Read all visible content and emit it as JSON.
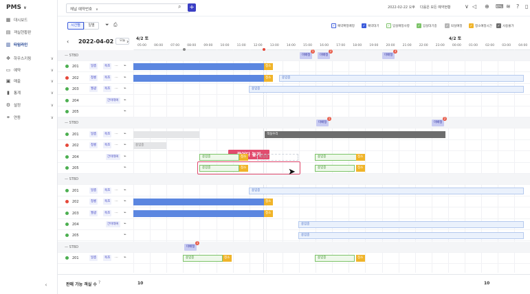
{
  "app": {
    "logo": "PMS"
  },
  "sidebar": {
    "items": [
      {
        "label": "대시보드",
        "icon": "dashboard-icon",
        "glyph": "▦",
        "chev": false,
        "active": false
      },
      {
        "label": "객실현황판",
        "icon": "room-board-icon",
        "glyph": "▤",
        "chev": false,
        "active": false
      },
      {
        "label": "타임라인",
        "icon": "timeline-icon",
        "glyph": "▥",
        "chev": false,
        "active": true
      },
      {
        "label": "하우스키핑",
        "icon": "housekeeping-icon",
        "glyph": "✥",
        "chev": true,
        "active": false
      },
      {
        "label": "예약",
        "icon": "reservation-icon",
        "glyph": "▭",
        "chev": true,
        "active": false
      },
      {
        "label": "매출",
        "icon": "sales-icon",
        "glyph": "▣",
        "chev": true,
        "active": false
      },
      {
        "label": "통계",
        "icon": "stats-icon",
        "glyph": "▮",
        "chev": true,
        "active": false
      },
      {
        "label": "설정",
        "icon": "settings-icon",
        "glyph": "⚙",
        "chev": true,
        "active": false
      },
      {
        "label": "연동",
        "icon": "integration-icon",
        "glyph": "⚭",
        "chev": true,
        "active": false
      }
    ]
  },
  "topbar": {
    "hotel_select": "채널 예약번호",
    "date_time": "2022-02-22 오후",
    "user": "다음은 모든 예약현황"
  },
  "toolbar": {
    "tab_timeline": "시간별",
    "tab_calendar": "일별",
    "legends": [
      {
        "label": "예약확정배정",
        "border": "#3b5bdb",
        "fill": "#ffffff",
        "check": "✓",
        "check_color": "#3b5bdb"
      },
      {
        "label": "예약대기",
        "border": "#3b5bdb",
        "fill": "#3b5bdb",
        "check": "✓",
        "check_color": "#ffffff"
      },
      {
        "label": "입실예정사항",
        "border": "#7cc368",
        "fill": "#ffffff",
        "check": "✓",
        "check_color": "#7cc368"
      },
      {
        "label": "입실대기중",
        "border": "#7cc368",
        "fill": "#7cc368",
        "check": "✓",
        "check_color": "#ffffff"
      },
      {
        "label": "퇴실예정",
        "border": "#b5b5b5",
        "fill": "#b5b5b5",
        "check": "✓",
        "check_color": "#ffffff"
      },
      {
        "label": "청소예정시간",
        "border": "#f0b429",
        "fill": "#f0b429",
        "check": "✓",
        "check_color": "#ffffff"
      },
      {
        "label": "사용불가",
        "border": "#6d6d6d",
        "fill": "#6d6d6d",
        "check": "✓",
        "check_color": "#ffffff"
      }
    ]
  },
  "date_nav": {
    "label": "2022-04-02",
    "today": "오늘",
    "prev": "‹",
    "next": "›"
  },
  "timeline": {
    "day1": "4/2 토",
    "day2": "4/2 토",
    "hours": [
      "05:00",
      "06:00",
      "07:00",
      "08:00",
      "09:00",
      "10:00",
      "11:00",
      "12:00",
      "13:00",
      "14:00",
      "15:00",
      "16:00",
      "17:00",
      "18:00",
      "19:00",
      "20:00",
      "21:00",
      "22:00",
      "23:00",
      "00:00",
      "01:00",
      "02:00",
      "03:00",
      "04:00",
      "05:00"
    ]
  },
  "groups": [
    {
      "label": "STBD",
      "rooms": [
        {
          "no": "201",
          "status": "#4caf50",
          "tags": [
            "일층",
            "욕조",
            "..."
          ],
          "bars": [
            {
              "kind": "blue",
              "text": ""
            },
            {
              "kind": "orange",
              "text": "청소"
            }
          ]
        },
        {
          "no": "202",
          "status": "#e5483a",
          "tags": [
            "청룡",
            "욕조",
            "..."
          ],
          "bars": [
            {
              "kind": "blue",
              "text": ""
            },
            {
              "kind": "orange",
              "text": "청소"
            },
            {
              "kind": "light",
              "text": "용입중"
            }
          ]
        },
        {
          "no": "203",
          "status": "#4caf50",
          "tags": [
            "월광",
            "욕조",
            "..."
          ],
          "bars": [
            {
              "kind": "light",
              "text": "용입중"
            }
          ]
        },
        {
          "no": "204",
          "status": "#4caf50",
          "tags": [
            "간이테이",
            "..."
          ],
          "bars": []
        },
        {
          "no": "205",
          "status": "#4caf50",
          "tags": [],
          "bars": []
        }
      ],
      "chips": [
        {
          "text": "미배정",
          "badge": "1"
        },
        {
          "text": "미배정",
          "badge": "2"
        },
        {
          "text": "미배정",
          "badge": "3"
        }
      ]
    },
    {
      "label": "STBD",
      "rooms": [
        {
          "no": "201",
          "status": "#4caf50",
          "tags": [
            "일층",
            "욕조",
            "..."
          ],
          "bars": [
            {
              "kind": "gray",
              "text": ""
            },
            {
              "kind": "dark",
              "text": "객실수리"
            }
          ]
        },
        {
          "no": "202",
          "status": "#e5483a",
          "tags": [
            "청룡",
            "욕조",
            "..."
          ],
          "bars": [
            {
              "kind": "gray",
              "text": "용입중"
            }
          ]
        },
        {
          "no": "204",
          "status": "#4caf50",
          "tags": [
            "간이테이",
            "..."
          ],
          "bars": [
            {
              "kind": "green",
              "text": "용입중"
            },
            {
              "kind": "orange",
              "text": "청소"
            },
            {
              "kind": "ghost",
              "text": "용입중"
            },
            {
              "kind": "green",
              "text": "용입중"
            },
            {
              "kind": "orange",
              "text": "청소"
            }
          ]
        },
        {
          "no": "205",
          "status": "#4caf50",
          "tags": [],
          "bars": [
            {
              "kind": "green",
              "text": "용입중"
            },
            {
              "kind": "orange",
              "text": "청소"
            },
            {
              "kind": "green",
              "text": "용입중"
            },
            {
              "kind": "orange",
              "text": "청소"
            }
          ]
        }
      ],
      "chips": [
        {
          "text": "미배정",
          "badge": "1"
        },
        {
          "text": "미배정",
          "badge": "2"
        }
      ]
    },
    {
      "label": "STBD",
      "rooms": [
        {
          "no": "201",
          "status": "#4caf50",
          "tags": [
            "일층",
            "욕조",
            "..."
          ],
          "bars": [
            {
              "kind": "light",
              "text": "용입중"
            }
          ]
        },
        {
          "no": "202",
          "status": "#e5483a",
          "tags": [
            "청룡",
            "욕조",
            "..."
          ],
          "bars": [
            {
              "kind": "blue",
              "text": ""
            },
            {
              "kind": "orange",
              "text": "청소"
            }
          ]
        },
        {
          "no": "203",
          "status": "#4caf50",
          "tags": [
            "월광",
            "욕조",
            "..."
          ],
          "bars": [
            {
              "kind": "blue",
              "text": ""
            },
            {
              "kind": "orange",
              "text": "청소"
            }
          ]
        },
        {
          "no": "204",
          "status": "#4caf50",
          "tags": [
            "간이테이",
            "..."
          ],
          "bars": [
            {
              "kind": "light",
              "text": "용입중"
            }
          ]
        },
        {
          "no": "205",
          "status": "#4caf50",
          "tags": [],
          "bars": [
            {
              "kind": "light",
              "text": "용입중"
            }
          ]
        }
      ],
      "chips": []
    },
    {
      "label": "STBD",
      "rooms": [
        {
          "no": "201",
          "status": "#4caf50",
          "tags": [
            "일층",
            "욕조",
            "..."
          ],
          "bars": [
            {
              "kind": "green",
              "text": "용입중"
            },
            {
              "kind": "orange",
              "text": "청소"
            },
            {
              "kind": "green",
              "text": "용입중"
            },
            {
              "kind": "orange",
              "text": "청소"
            }
          ]
        }
      ],
      "chips": [
        {
          "text": "미배정",
          "badge": "1"
        }
      ]
    }
  ],
  "annotation": {
    "drag_label": "끌어다 놓기"
  },
  "footer": {
    "label": "판매 가능 객실 수",
    "count1": "10",
    "count2": "10"
  }
}
